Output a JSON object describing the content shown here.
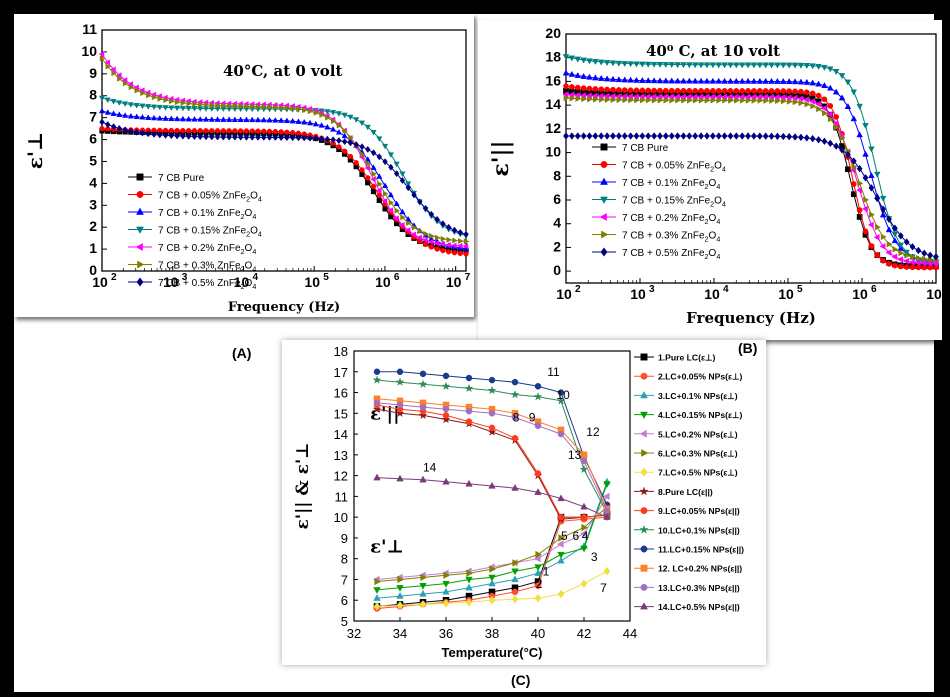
{
  "panel_labels": {
    "a": "(A)",
    "b": "(B)",
    "c": "(C)"
  },
  "chart_data": [
    {
      "id": "A",
      "type": "line",
      "annotation": "40°C, at 0 volt",
      "xlabel": "Frequency (Hz)",
      "ylabel": "ε'⊥",
      "xscale": "log",
      "xlim": [
        100,
        14000000
      ],
      "xticks": [
        100,
        1000,
        10000,
        100000,
        1000000,
        10000000
      ],
      "xtick_labels": [
        "10",
        "10",
        "10",
        "10",
        "10",
        "10"
      ],
      "xtick_exps": [
        "2",
        "3",
        "4",
        "5",
        "6",
        "7"
      ],
      "ylim": [
        0,
        11
      ],
      "yticks": [
        0,
        1,
        2,
        3,
        4,
        5,
        6,
        7,
        8,
        9,
        10,
        11
      ],
      "legend_position": "center-left",
      "series": [
        {
          "name": "7 CB Pure",
          "color": "#000000",
          "marker": "square",
          "y0": 6.4,
          "plateau": 6.3,
          "fc": 700000,
          "n": 1.6,
          "end": 0.9
        },
        {
          "name": "7 CB + 0.05% ZnFe2O4",
          "color": "#ff0000",
          "marker": "circle",
          "y0": 6.5,
          "plateau": 6.4,
          "fc": 800000,
          "n": 1.5,
          "end": 0.7
        },
        {
          "name": "7 CB + 0.1% ZnFe2O4",
          "color": "#0000ff",
          "marker": "triangle",
          "y0": 7.3,
          "plateau": 6.9,
          "fc": 1000000,
          "n": 1.5,
          "end": 0.9
        },
        {
          "name": "7 CB + 0.15% ZnFe2O4",
          "color": "#008080",
          "marker": "triangle-down",
          "y0": 7.9,
          "plateau": 7.4,
          "fc": 1800000,
          "n": 1.6,
          "end": 1.4
        },
        {
          "name": "7 CB + 0.2% ZnFe2O4",
          "color": "#ff00ff",
          "marker": "triangle-left",
          "y0": 9.9,
          "plateau": 7.6,
          "fc": 650000,
          "n": 1.7,
          "end": 1.1
        },
        {
          "name": "7 CB + 0.3% ZnFe2O4",
          "color": "#808000",
          "marker": "triangle-right",
          "y0": 9.7,
          "plateau": 7.5,
          "fc": 700000,
          "n": 1.6,
          "end": 1.3
        },
        {
          "name": "7 CB + 0.5% ZnFe2O4",
          "color": "#000080",
          "marker": "diamond",
          "y0": 6.8,
          "plateau": 6.1,
          "fc": 2200000,
          "n": 1.5,
          "end": 1.4
        }
      ]
    },
    {
      "id": "B",
      "type": "line",
      "annotation": "40⁰ C, at 10 volt",
      "xlabel": "Frequency (Hz)",
      "ylabel": "ε'||",
      "xscale": "log",
      "xlim": [
        100,
        10000000
      ],
      "xticks": [
        100,
        1000,
        10000,
        100000,
        1000000,
        10000000
      ],
      "xtick_labels": [
        "10",
        "10",
        "10",
        "10",
        "10",
        "10"
      ],
      "xtick_exps": [
        "2",
        "3",
        "4",
        "5",
        "6",
        "7"
      ],
      "ylim": [
        -1,
        20
      ],
      "yticks": [
        0,
        2,
        4,
        6,
        8,
        10,
        12,
        14,
        16,
        18,
        20
      ],
      "legend_position": "center-left",
      "series": [
        {
          "name": "7 CB Pure",
          "color": "#000000",
          "marker": "square",
          "y0": 15.2,
          "plateau": 14.9,
          "fc": 700000,
          "n": 3.2,
          "end": 0.4
        },
        {
          "name": "7 CB + 0.05% ZnFe2O4",
          "color": "#ff0000",
          "marker": "circle",
          "y0": 15.6,
          "plateau": 15.2,
          "fc": 750000,
          "n": 3.4,
          "end": 0.3
        },
        {
          "name": "7 CB + 0.1% ZnFe2O4",
          "color": "#0000ff",
          "marker": "triangle",
          "y0": 16.7,
          "plateau": 16.0,
          "fc": 1300000,
          "n": 2.6,
          "end": 0.7
        },
        {
          "name": "7 CB + 0.15% ZnFe2O4",
          "color": "#008080",
          "marker": "triangle-down",
          "y0": 18.1,
          "plateau": 17.4,
          "fc": 1500000,
          "n": 2.8,
          "end": 0.6
        },
        {
          "name": "7 CB + 0.2% ZnFe2O4",
          "color": "#ff00ff",
          "marker": "triangle-left",
          "y0": 14.9,
          "plateau": 14.7,
          "fc": 850000,
          "n": 2.6,
          "end": 0.6
        },
        {
          "name": "7 CB + 0.3% ZnFe2O4",
          "color": "#808000",
          "marker": "triangle-right",
          "y0": 14.6,
          "plateau": 14.4,
          "fc": 900000,
          "n": 2.3,
          "end": 0.9
        },
        {
          "name": "7 CB + 0.5% ZnFe2O4",
          "color": "#000080",
          "marker": "diamond",
          "y0": 11.4,
          "plateau": 11.4,
          "fc": 1600000,
          "n": 1.9,
          "end": 0.9
        }
      ]
    },
    {
      "id": "C",
      "type": "line",
      "xlabel": "Temperature(°C)",
      "ylabel": "ε'|| & ε'⊥",
      "xlim": [
        32,
        44
      ],
      "xticks": [
        32,
        34,
        36,
        38,
        40,
        42,
        44
      ],
      "ylim": [
        5,
        18
      ],
      "yticks": [
        5,
        6,
        7,
        8,
        9,
        10,
        11,
        12,
        13,
        14,
        15,
        16,
        17,
        18
      ],
      "x": [
        33,
        34,
        35,
        36,
        37,
        38,
        39,
        40,
        41,
        42,
        43
      ],
      "region_labels": {
        "parallel": "ε'||",
        "perp": "ε'⊥"
      },
      "legend_position": "right",
      "series": [
        {
          "name": "1.Pure LC(ε⊥)",
          "label": "1",
          "color": "#000000",
          "marker": "square",
          "values": [
            5.7,
            5.8,
            5.9,
            6.0,
            6.2,
            6.4,
            6.6,
            6.9,
            10.0,
            10.0,
            10.1
          ]
        },
        {
          "name": "2.LC+0.05% NPs(ε⊥)",
          "label": "2",
          "color": "#ff4d2e",
          "marker": "circle",
          "values": [
            5.6,
            5.7,
            5.8,
            5.9,
            6.0,
            6.2,
            6.4,
            6.7,
            9.8,
            9.9,
            10.0
          ]
        },
        {
          "name": "3.LC+0.1% NPs(ε⊥)",
          "label": "3",
          "color": "#2ca0b5",
          "marker": "triangle",
          "values": [
            6.1,
            6.2,
            6.3,
            6.4,
            6.6,
            6.8,
            7.0,
            7.3,
            7.9,
            8.6,
            11.7
          ]
        },
        {
          "name": "4.LC+0.15% NPs(ε⊥)",
          "label": "4",
          "color": "#00a000",
          "marker": "triangle-down",
          "values": [
            6.5,
            6.6,
            6.7,
            6.8,
            7.0,
            7.1,
            7.4,
            7.6,
            8.2,
            8.5,
            11.6
          ]
        },
        {
          "name": "5.LC+0.2% NPs(ε⊥)",
          "label": "5",
          "color": "#c080d0",
          "marker": "triangle-left",
          "values": [
            7.0,
            7.1,
            7.2,
            7.3,
            7.4,
            7.6,
            7.8,
            8.0,
            8.7,
            9.2,
            11.0
          ]
        },
        {
          "name": "6.LC+0.3% NPs(ε⊥)",
          "label": "6",
          "color": "#808000",
          "marker": "triangle-right",
          "values": [
            6.9,
            7.0,
            7.1,
            7.2,
            7.3,
            7.5,
            7.8,
            8.2,
            9.0,
            9.5,
            10.5
          ]
        },
        {
          "name": "7.LC+0.5% NPs(ε⊥)",
          "label": "7",
          "color": "#f0e040",
          "marker": "diamond",
          "values": [
            5.7,
            5.75,
            5.8,
            5.85,
            5.9,
            6.0,
            6.05,
            6.1,
            6.3,
            6.8,
            7.4
          ]
        },
        {
          "name": "8.Pure LC(ε||)",
          "label": "8",
          "color": "#8b1a1a",
          "marker": "star",
          "values": [
            15.2,
            15.0,
            14.9,
            14.7,
            14.5,
            14.1,
            13.7,
            12.0,
            9.9,
            10.0,
            10.1
          ]
        },
        {
          "name": "9.LC+0.05% NPs(ε||)",
          "label": "9",
          "color": "#ff3b1f",
          "marker": "circle",
          "values": [
            15.4,
            15.2,
            15.1,
            14.9,
            14.6,
            14.3,
            13.8,
            12.1,
            10.0,
            10.0,
            10.1
          ]
        },
        {
          "name": "10.LC+0.1% NPs(ε||)",
          "label": "10",
          "color": "#2e8b57",
          "marker": "star",
          "values": [
            16.6,
            16.5,
            16.4,
            16.3,
            16.2,
            16.1,
            15.9,
            15.8,
            15.6,
            12.3,
            10.2
          ]
        },
        {
          "name": "11.LC+0.15% NPs(ε||)",
          "label": "11",
          "color": "#1a3a8b",
          "marker": "circle",
          "values": [
            17.0,
            17.0,
            16.9,
            16.8,
            16.7,
            16.6,
            16.5,
            16.3,
            16.0,
            12.9,
            10.6
          ]
        },
        {
          "name": "12. LC+0.2% NPs(ε||)",
          "label": "12",
          "color": "#ff7f2a",
          "marker": "square",
          "values": [
            15.7,
            15.6,
            15.5,
            15.4,
            15.3,
            15.2,
            15.0,
            14.6,
            14.2,
            13.0,
            10.4
          ]
        },
        {
          "name": "13.LC+0.3% NPs(ε||)",
          "label": "13",
          "color": "#a070c0",
          "marker": "circle",
          "values": [
            15.5,
            15.4,
            15.3,
            15.2,
            15.1,
            15.0,
            14.8,
            14.4,
            14.0,
            12.7,
            10.3
          ]
        },
        {
          "name": "14.LC+0.5% NPs(ε||)",
          "label": "14",
          "color": "#7a3a7a",
          "marker": "triangle",
          "values": [
            11.9,
            11.85,
            11.8,
            11.7,
            11.6,
            11.5,
            11.4,
            11.2,
            10.9,
            10.5,
            10.0
          ]
        }
      ],
      "curve_numbers": [
        {
          "text": "1",
          "x": 40.2,
          "y": 7.2
        },
        {
          "text": "2",
          "x": 39.9,
          "y": 6.6
        },
        {
          "text": "3",
          "x": 42.3,
          "y": 7.9
        },
        {
          "text": "4",
          "x": 41.9,
          "y": 8.9
        },
        {
          "text": "5",
          "x": 41.0,
          "y": 8.9
        },
        {
          "text": "6",
          "x": 41.5,
          "y": 8.9
        },
        {
          "text": "7",
          "x": 42.7,
          "y": 6.4
        },
        {
          "text": "8",
          "x": 38.9,
          "y": 14.6
        },
        {
          "text": "9",
          "x": 39.6,
          "y": 14.6
        },
        {
          "text": "10",
          "x": 40.8,
          "y": 15.7
        },
        {
          "text": "11",
          "x": 40.4,
          "y": 16.8
        },
        {
          "text": "12",
          "x": 42.1,
          "y": 13.9
        },
        {
          "text": "13",
          "x": 41.3,
          "y": 12.8
        },
        {
          "text": "14",
          "x": 35.0,
          "y": 12.2
        }
      ]
    }
  ]
}
